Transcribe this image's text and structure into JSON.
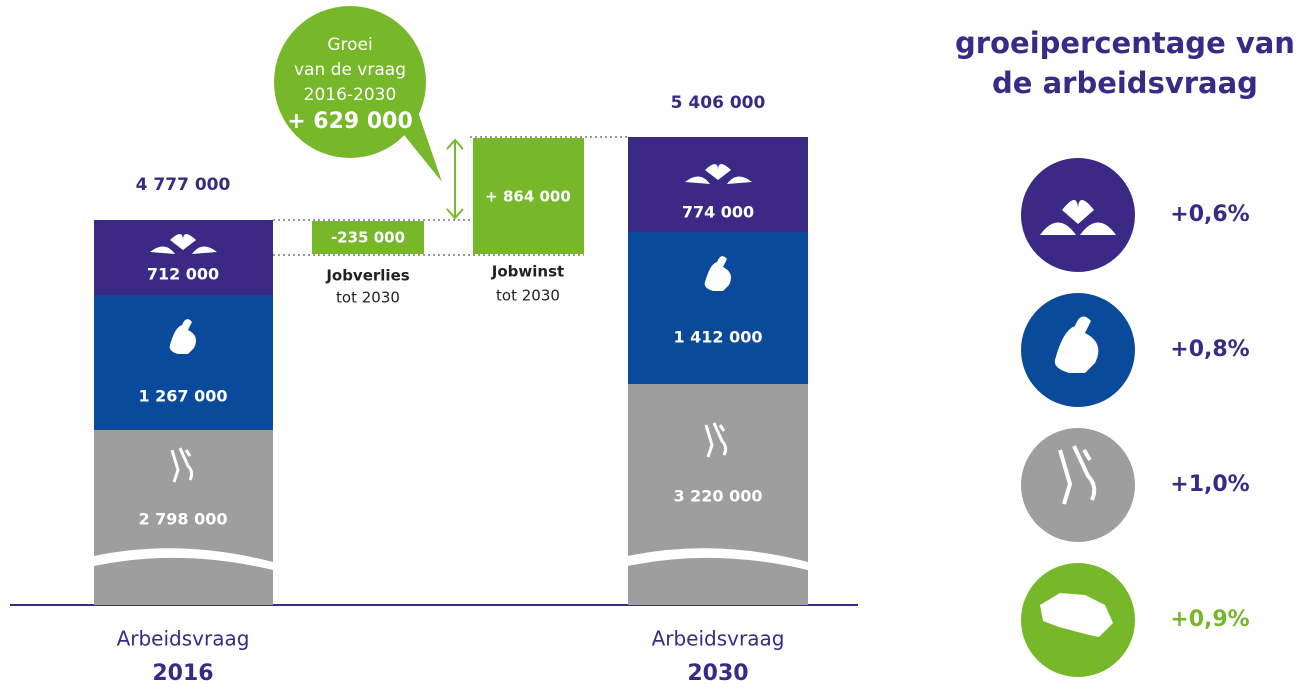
{
  "bars": [
    {
      "total": "4 777 000",
      "label": "Arbeidsvraag",
      "year": "2016",
      "segments": [
        "712 000",
        "1 267 000",
        "2 798 000"
      ]
    },
    {
      "total": "5 406 000",
      "label": "Arbeidsvraag",
      "year": "2030",
      "segments": [
        "774 000",
        "1 412 000",
        "3 220 000"
      ]
    }
  ],
  "changes": {
    "loss": {
      "value": "-235 000",
      "label": "Jobverlies",
      "sub": "tot 2030"
    },
    "gain": {
      "value": "+ 864 000",
      "label": "Jobwinst",
      "sub": "tot 2030"
    }
  },
  "bubble": {
    "lines": [
      "Groei",
      "van de vraag",
      "2016-2030"
    ],
    "total": "+ 629 000"
  },
  "legend": {
    "title": [
      "groeipercentage van",
      "de arbeidsvraag"
    ],
    "rates": [
      "+0,6%",
      "+0,8%",
      "+1,0%",
      "+0,9%"
    ]
  }
}
